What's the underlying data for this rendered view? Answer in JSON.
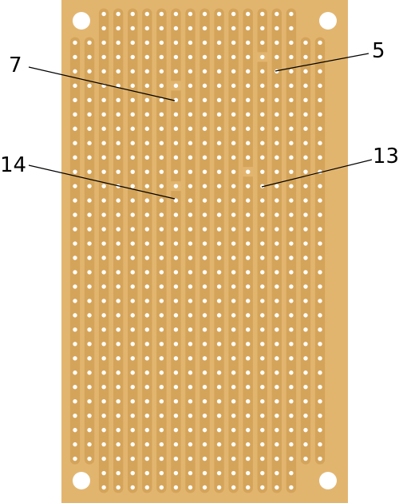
{
  "board": {
    "board_color": "#e2b56f",
    "strip_color": "#d4a45a",
    "hole_color": "#ffffff",
    "strip_count": 18,
    "hole_rows": 34
  },
  "callouts": [
    {
      "label": "7",
      "strip": 8,
      "row": 6,
      "side": "left"
    },
    {
      "label": "5",
      "strip": 14,
      "row": 4,
      "side": "right"
    },
    {
      "label": "14",
      "strip": 8,
      "row": 13,
      "side": "left"
    },
    {
      "label": "13",
      "strip": 13,
      "row": 12,
      "side": "right"
    }
  ]
}
